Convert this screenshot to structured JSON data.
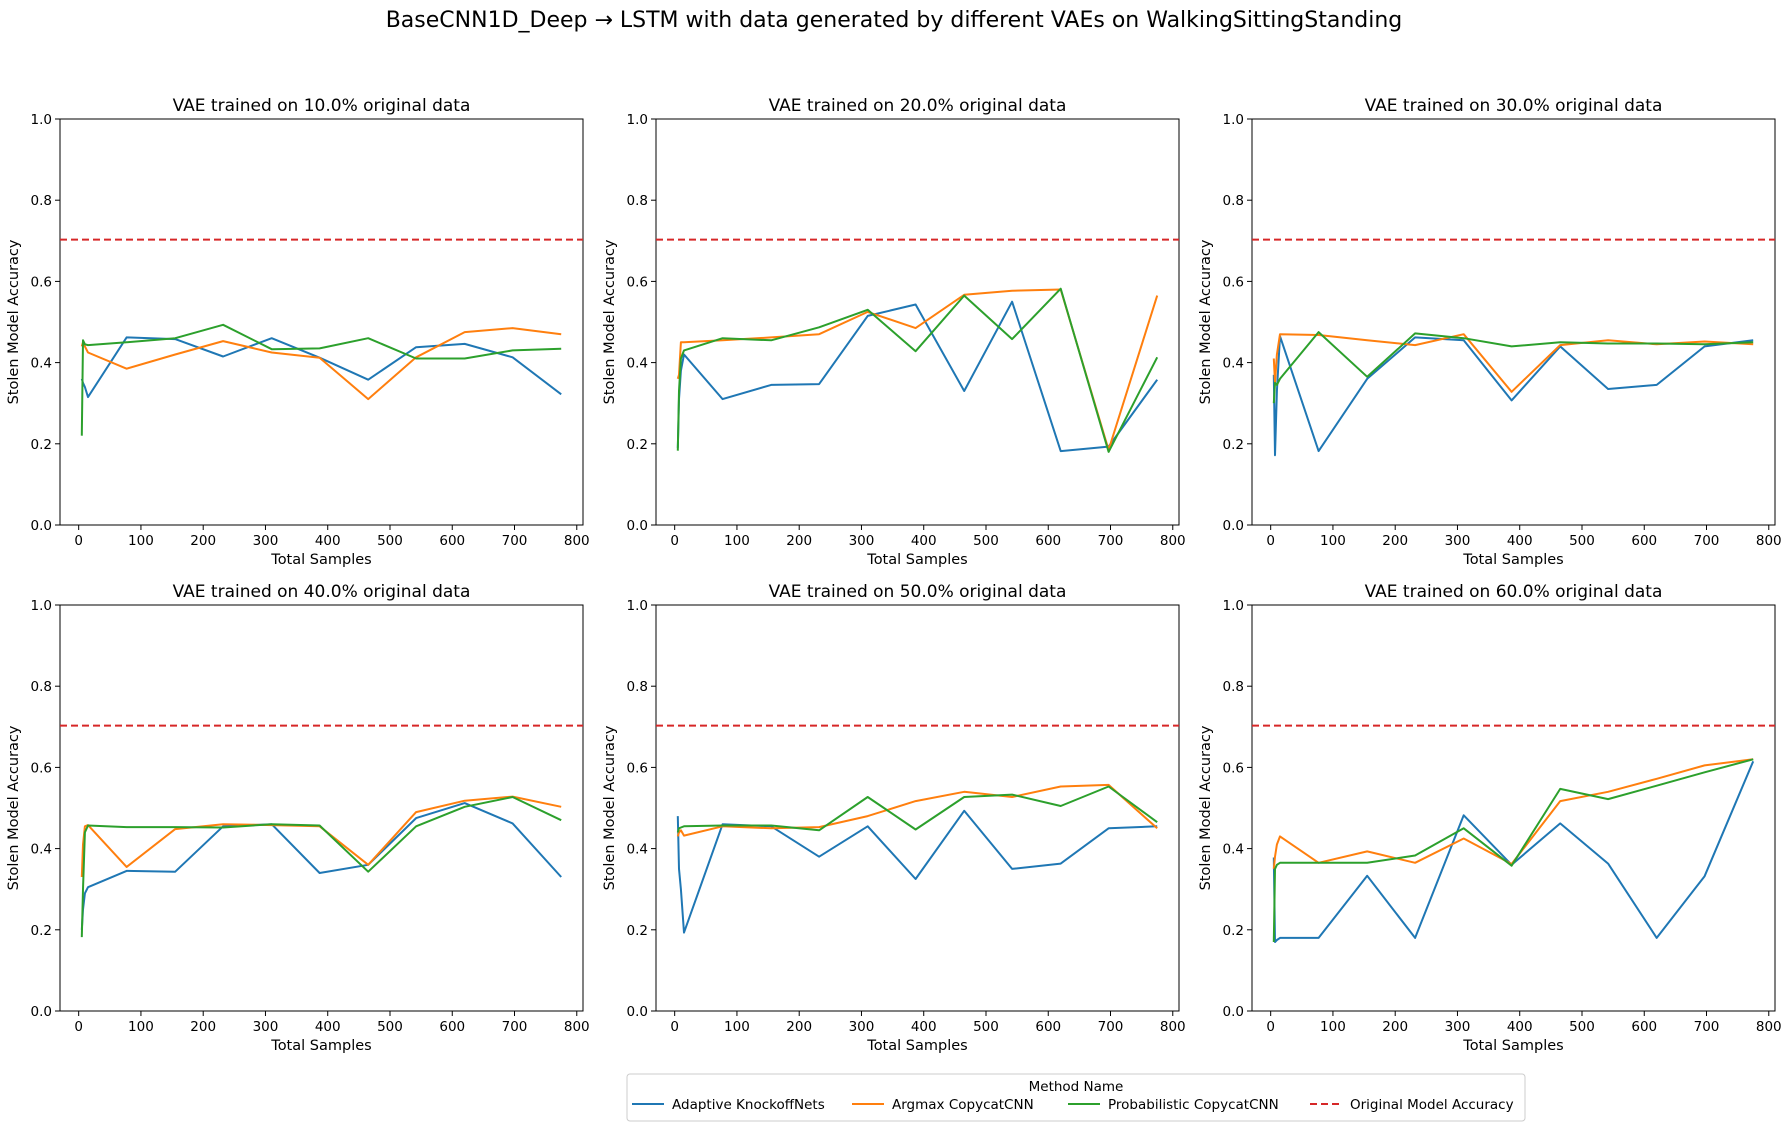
{
  "figure": {
    "title": "BaseCNN1D_Deep → LSTM with data generated by different VAEs on WalkingSittingStanding"
  },
  "legend": {
    "title": "Method Name",
    "placement": "bottom-center",
    "items": [
      {
        "name": "Adaptive KnockoffNets",
        "color": "#1f77b4",
        "style": "solid"
      },
      {
        "name": "Argmax CopycatCNN",
        "color": "#ff7f0e",
        "style": "solid"
      },
      {
        "name": "Probabilistic CopycatCNN",
        "color": "#2ca02c",
        "style": "solid"
      },
      {
        "name": "Original Model Accuracy",
        "color": "#d62728",
        "style": "dashed"
      }
    ]
  },
  "chart_data": [
    {
      "type": "line",
      "title": "VAE trained on 10.0% original data",
      "xlabel": "Total Samples",
      "ylabel": "Stolen Model Accuracy",
      "xlim": [
        -30,
        810
      ],
      "ylim": [
        0,
        1.0
      ],
      "xticks": [
        "0",
        "100",
        "200",
        "300",
        "400",
        "500",
        "600",
        "700",
        "800"
      ],
      "yticks": [
        "0.0",
        "0.2",
        "0.4",
        "0.6",
        "0.8",
        "1.0"
      ],
      "grid": false,
      "hline": {
        "name": "Original Model Accuracy",
        "y": 0.703
      },
      "series": [
        {
          "name": "Adaptive KnockoffNets",
          "x": [
            5,
            7,
            10,
            15,
            77,
            155,
            232,
            310,
            387,
            465,
            542,
            620,
            697,
            775
          ],
          "y": [
            0.36,
            0.35,
            0.34,
            0.315,
            0.462,
            0.458,
            0.415,
            0.46,
            0.412,
            0.358,
            0.438,
            0.446,
            0.413,
            0.322
          ]
        },
        {
          "name": "Argmax CopycatCNN",
          "x": [
            5,
            7,
            10,
            15,
            77,
            155,
            232,
            310,
            387,
            465,
            542,
            620,
            697,
            775
          ],
          "y": [
            0.44,
            0.45,
            0.44,
            0.425,
            0.385,
            0.42,
            0.453,
            0.425,
            0.412,
            0.31,
            0.413,
            0.475,
            0.485,
            0.47
          ]
        },
        {
          "name": "Probabilistic CopycatCNN",
          "x": [
            5,
            7,
            10,
            15,
            77,
            155,
            232,
            310,
            387,
            465,
            542,
            620,
            697,
            775
          ],
          "y": [
            0.22,
            0.455,
            0.445,
            0.443,
            0.45,
            0.46,
            0.493,
            0.433,
            0.435,
            0.46,
            0.41,
            0.41,
            0.43,
            0.434
          ]
        }
      ]
    },
    {
      "type": "line",
      "title": "VAE trained on 20.0% original data",
      "xlabel": "Total Samples",
      "ylabel": "Stolen Model Accuracy",
      "xlim": [
        -30,
        810
      ],
      "ylim": [
        0,
        1.0
      ],
      "xticks": [
        "0",
        "100",
        "200",
        "300",
        "400",
        "500",
        "600",
        "700",
        "800"
      ],
      "yticks": [
        "0.0",
        "0.2",
        "0.4",
        "0.6",
        "0.8",
        "1.0"
      ],
      "grid": false,
      "hline": {
        "name": "Original Model Accuracy",
        "y": 0.703
      },
      "series": [
        {
          "name": "Adaptive KnockoffNets",
          "x": [
            5,
            7,
            10,
            15,
            77,
            155,
            232,
            310,
            387,
            465,
            542,
            620,
            697,
            775
          ],
          "y": [
            0.19,
            0.31,
            0.38,
            0.42,
            0.31,
            0.345,
            0.347,
            0.515,
            0.543,
            0.33,
            0.55,
            0.182,
            0.193,
            0.358
          ]
        },
        {
          "name": "Argmax CopycatCNN",
          "x": [
            5,
            7,
            10,
            15,
            77,
            155,
            232,
            310,
            387,
            465,
            542,
            620,
            697,
            775
          ],
          "y": [
            0.36,
            0.37,
            0.45,
            0.45,
            0.455,
            0.462,
            0.47,
            0.525,
            0.485,
            0.567,
            0.577,
            0.58,
            0.185,
            0.565
          ]
        },
        {
          "name": "Probabilistic CopycatCNN",
          "x": [
            5,
            7,
            10,
            15,
            77,
            155,
            232,
            310,
            387,
            465,
            542,
            620,
            697,
            775
          ],
          "y": [
            0.183,
            0.33,
            0.41,
            0.43,
            0.46,
            0.455,
            0.487,
            0.53,
            0.428,
            0.565,
            0.458,
            0.582,
            0.18,
            0.413
          ]
        }
      ]
    },
    {
      "type": "line",
      "title": "VAE trained on 30.0% original data",
      "xlabel": "Total Samples",
      "ylabel": "Stolen Model Accuracy",
      "xlim": [
        -30,
        810
      ],
      "ylim": [
        0,
        1.0
      ],
      "xticks": [
        "0",
        "100",
        "200",
        "300",
        "400",
        "500",
        "600",
        "700",
        "800"
      ],
      "yticks": [
        "0.0",
        "0.2",
        "0.4",
        "0.6",
        "0.8",
        "1.0"
      ],
      "grid": false,
      "hline": {
        "name": "Original Model Accuracy",
        "y": 0.703
      },
      "series": [
        {
          "name": "Adaptive KnockoffNets",
          "x": [
            5,
            7,
            10,
            15,
            77,
            155,
            232,
            310,
            387,
            465,
            542,
            620,
            697,
            775
          ],
          "y": [
            0.37,
            0.172,
            0.33,
            0.465,
            0.182,
            0.36,
            0.462,
            0.455,
            0.307,
            0.44,
            0.335,
            0.345,
            0.44,
            0.455
          ]
        },
        {
          "name": "Argmax CopycatCNN",
          "x": [
            5,
            7,
            10,
            15,
            77,
            155,
            232,
            310,
            387,
            465,
            542,
            620,
            697,
            775
          ],
          "y": [
            0.41,
            0.35,
            0.42,
            0.47,
            0.468,
            0.455,
            0.443,
            0.47,
            0.328,
            0.443,
            0.455,
            0.445,
            0.452,
            0.445
          ]
        },
        {
          "name": "Probabilistic CopycatCNN",
          "x": [
            5,
            7,
            10,
            15,
            77,
            155,
            232,
            310,
            387,
            465,
            542,
            620,
            697,
            775
          ],
          "y": [
            0.3,
            0.35,
            0.345,
            0.36,
            0.475,
            0.365,
            0.472,
            0.46,
            0.44,
            0.45,
            0.447,
            0.447,
            0.445,
            0.45
          ]
        }
      ]
    },
    {
      "type": "line",
      "title": "VAE trained on 40.0% original data",
      "xlabel": "Total Samples",
      "ylabel": "Stolen Model Accuracy",
      "xlim": [
        -30,
        810
      ],
      "ylim": [
        0,
        1.0
      ],
      "xticks": [
        "0",
        "100",
        "200",
        "300",
        "400",
        "500",
        "600",
        "700",
        "800"
      ],
      "yticks": [
        "0.0",
        "0.2",
        "0.4",
        "0.6",
        "0.8",
        "1.0"
      ],
      "grid": false,
      "hline": {
        "name": "Original Model Accuracy",
        "y": 0.703
      },
      "series": [
        {
          "name": "Adaptive KnockoffNets",
          "x": [
            5,
            7,
            10,
            15,
            77,
            155,
            232,
            310,
            387,
            465,
            542,
            620,
            697,
            775
          ],
          "y": [
            0.2,
            0.25,
            0.29,
            0.305,
            0.345,
            0.343,
            0.455,
            0.46,
            0.34,
            0.36,
            0.475,
            0.512,
            0.462,
            0.33
          ]
        },
        {
          "name": "Argmax CopycatCNN",
          "x": [
            5,
            7,
            10,
            15,
            77,
            155,
            232,
            310,
            387,
            465,
            542,
            620,
            697,
            775
          ],
          "y": [
            0.33,
            0.41,
            0.455,
            0.458,
            0.355,
            0.448,
            0.46,
            0.458,
            0.455,
            0.36,
            0.49,
            0.518,
            0.528,
            0.503
          ]
        },
        {
          "name": "Probabilistic CopycatCNN",
          "x": [
            5,
            7,
            10,
            15,
            77,
            155,
            232,
            310,
            387,
            465,
            542,
            620,
            697,
            775
          ],
          "y": [
            0.182,
            0.3,
            0.44,
            0.457,
            0.453,
            0.453,
            0.452,
            0.46,
            0.457,
            0.343,
            0.455,
            0.503,
            0.527,
            0.47
          ]
        }
      ]
    },
    {
      "type": "line",
      "title": "VAE trained on 50.0% original data",
      "xlabel": "Total Samples",
      "ylabel": "Stolen Model Accuracy",
      "xlim": [
        -30,
        810
      ],
      "ylim": [
        0,
        1.0
      ],
      "xticks": [
        "0",
        "100",
        "200",
        "300",
        "400",
        "500",
        "600",
        "700",
        "800"
      ],
      "yticks": [
        "0.0",
        "0.2",
        "0.4",
        "0.6",
        "0.8",
        "1.0"
      ],
      "grid": false,
      "hline": {
        "name": "Original Model Accuracy",
        "y": 0.703
      },
      "series": [
        {
          "name": "Adaptive KnockoffNets",
          "x": [
            5,
            7,
            10,
            15,
            77,
            155,
            232,
            310,
            387,
            465,
            542,
            620,
            697,
            775
          ],
          "y": [
            0.48,
            0.35,
            0.3,
            0.193,
            0.46,
            0.455,
            0.38,
            0.455,
            0.325,
            0.493,
            0.35,
            0.363,
            0.45,
            0.455
          ]
        },
        {
          "name": "Argmax CopycatCNN",
          "x": [
            5,
            7,
            10,
            15,
            77,
            155,
            232,
            310,
            387,
            465,
            542,
            620,
            697,
            775
          ],
          "y": [
            0.43,
            0.44,
            0.445,
            0.432,
            0.455,
            0.45,
            0.453,
            0.48,
            0.517,
            0.54,
            0.527,
            0.553,
            0.557,
            0.45
          ]
        },
        {
          "name": "Probabilistic CopycatCNN",
          "x": [
            5,
            7,
            10,
            15,
            77,
            155,
            232,
            310,
            387,
            465,
            542,
            620,
            697,
            775
          ],
          "y": [
            0.44,
            0.45,
            0.452,
            0.455,
            0.457,
            0.457,
            0.445,
            0.527,
            0.447,
            0.527,
            0.533,
            0.505,
            0.553,
            0.465
          ]
        }
      ]
    },
    {
      "type": "line",
      "title": "VAE trained on 60.0% original data",
      "xlabel": "Total Samples",
      "ylabel": "Stolen Model Accuracy",
      "xlim": [
        -30,
        810
      ],
      "ylim": [
        0,
        1.0
      ],
      "xticks": [
        "0",
        "100",
        "200",
        "300",
        "400",
        "500",
        "600",
        "700",
        "800"
      ],
      "yticks": [
        "0.0",
        "0.2",
        "0.4",
        "0.6",
        "0.8",
        "1.0"
      ],
      "grid": false,
      "hline": {
        "name": "Original Model Accuracy",
        "y": 0.703
      },
      "series": [
        {
          "name": "Adaptive KnockoffNets",
          "x": [
            5,
            7,
            10,
            15,
            77,
            155,
            232,
            310,
            387,
            465,
            542,
            620,
            697,
            775
          ],
          "y": [
            0.378,
            0.17,
            0.175,
            0.18,
            0.18,
            0.333,
            0.18,
            0.482,
            0.36,
            0.462,
            0.363,
            0.18,
            0.332,
            0.615
          ]
        },
        {
          "name": "Argmax CopycatCNN",
          "x": [
            5,
            7,
            10,
            15,
            77,
            155,
            232,
            310,
            387,
            465,
            542,
            620,
            697,
            775
          ],
          "y": [
            0.35,
            0.38,
            0.41,
            0.43,
            0.365,
            0.393,
            0.365,
            0.425,
            0.362,
            0.517,
            0.54,
            0.572,
            0.605,
            0.62
          ]
        },
        {
          "name": "Probabilistic CopycatCNN",
          "x": [
            5,
            7,
            10,
            15,
            77,
            155,
            232,
            310,
            387,
            465,
            542,
            620,
            697,
            775
          ],
          "y": [
            0.17,
            0.35,
            0.36,
            0.365,
            0.365,
            0.365,
            0.383,
            0.45,
            0.358,
            0.547,
            0.522,
            0.555,
            0.588,
            0.62
          ]
        }
      ]
    }
  ]
}
